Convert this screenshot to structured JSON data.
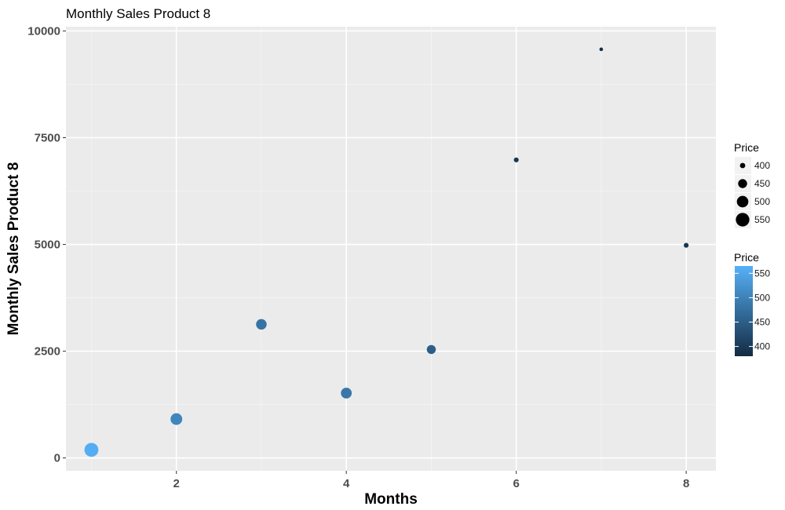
{
  "chart_data": {
    "type": "scatter",
    "title": "Monthly Sales Product 8",
    "xlabel": "Months",
    "ylabel": "Monthly Sales Product 8",
    "xlim": [
      0.7,
      8.35
    ],
    "ylim": [
      -300,
      10100
    ],
    "x_ticks": [
      2,
      4,
      6,
      8
    ],
    "x_minor_ticks": [
      1,
      3,
      5,
      7
    ],
    "y_ticks": [
      0,
      2500,
      5000,
      7500,
      10000
    ],
    "y_minor_ticks": [
      1250,
      3750,
      6250,
      8750
    ],
    "grid": true,
    "points": [
      {
        "x": 1,
        "y": 190,
        "price": 560
      },
      {
        "x": 2,
        "y": 910,
        "price": 505
      },
      {
        "x": 3,
        "y": 3130,
        "price": 480
      },
      {
        "x": 4,
        "y": 1520,
        "price": 485
      },
      {
        "x": 5,
        "y": 2540,
        "price": 450
      },
      {
        "x": 6,
        "y": 6980,
        "price": 395
      },
      {
        "x": 7,
        "y": 9570,
        "price": 385
      },
      {
        "x": 8,
        "y": 4980,
        "price": 395
      }
    ],
    "legends": {
      "size": {
        "title": "Price",
        "labels": [
          "400",
          "450",
          "500",
          "550"
        ],
        "values": [
          400,
          450,
          500,
          550
        ]
      },
      "color": {
        "title": "Price",
        "labels": [
          "550",
          "500",
          "450",
          "400"
        ],
        "values": [
          550,
          500,
          450,
          400
        ],
        "range": [
          380,
          565
        ]
      }
    },
    "colors": {
      "low": "#132b43",
      "high": "#56b1f7",
      "panel": "#ebebeb",
      "grid": "#ffffff"
    },
    "legend_position": "right"
  }
}
